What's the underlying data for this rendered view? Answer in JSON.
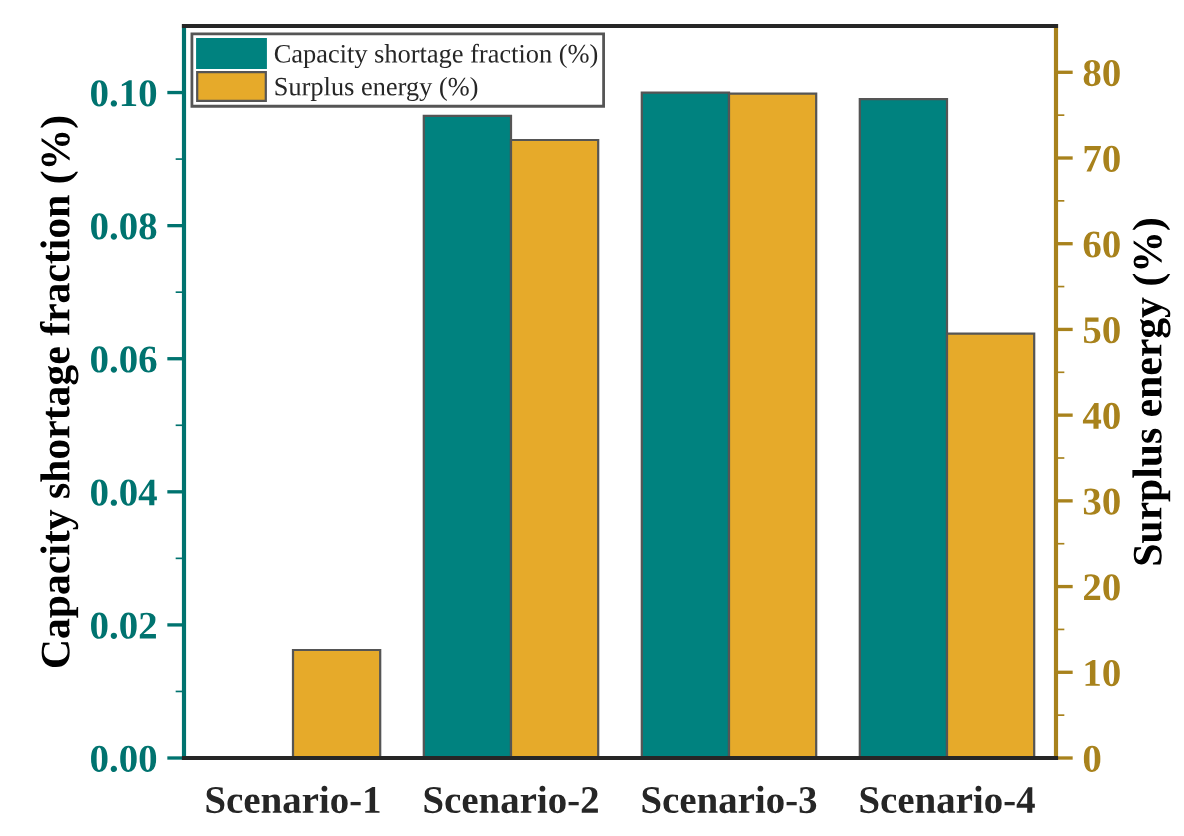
{
  "chart_data": {
    "type": "bar",
    "ylabel": "Capacity shortage fraction (%)",
    "y2label": "Surplus energy (%)",
    "categories": [
      "Scenario-1",
      "Scenario-2",
      "Scenario-3",
      "Scenario-4"
    ],
    "series": [
      {
        "name": "Capacity shortage fraction (%)",
        "color": "#00827f",
        "values": [
          0,
          0.0965,
          0.1,
          0.099
        ]
      },
      {
        "name": "Surplus energy (%)",
        "color": "#e6aa2a",
        "axis": "y2",
        "values": [
          12.6,
          72.1,
          77.5,
          49.5
        ]
      }
    ],
    "ylim": [
      0,
      0.11
    ],
    "yticks": [
      {
        "value": 0,
        "label": "0.00"
      },
      {
        "value": 0.02,
        "label": "0.02"
      },
      {
        "value": 0.04,
        "label": "0.04"
      },
      {
        "value": 0.06,
        "label": "0.06"
      },
      {
        "value": 0.08,
        "label": "0.08"
      },
      {
        "value": 0.1,
        "label": "0.10"
      }
    ],
    "y2lim": [
      0,
      85.4
    ],
    "y2ticks": [
      0,
      10,
      20,
      30,
      40,
      50,
      60,
      70,
      80
    ],
    "legend": "top left",
    "grid": false
  }
}
